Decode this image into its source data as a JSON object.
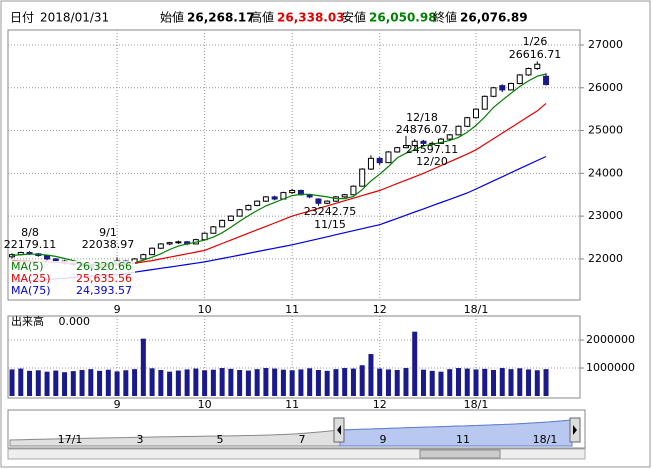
{
  "header": {
    "date_label": "日付",
    "date": "2018/01/31",
    "fields": [
      {
        "label": "始値",
        "value": "26,268.17",
        "color": "#000000"
      },
      {
        "label": "高値",
        "value": "26,338.03",
        "color": "#e00000"
      },
      {
        "label": "安値",
        "value": "26,050.98",
        "color": "#008000"
      },
      {
        "label": "終値",
        "value": "26,076.89",
        "color": "#000000"
      }
    ]
  },
  "chart_data": [
    {
      "type": "candlestick",
      "categories": [
        null,
        null,
        null,
        null,
        null,
        null,
        null,
        null,
        null,
        null,
        null,
        null,
        "9",
        null,
        null,
        null,
        null,
        null,
        null,
        null,
        null,
        null,
        "10",
        null,
        null,
        null,
        null,
        null,
        null,
        null,
        null,
        null,
        "11",
        null,
        null,
        null,
        null,
        null,
        null,
        null,
        null,
        null,
        "12",
        null,
        null,
        null,
        null,
        null,
        null,
        null,
        null,
        null,
        null,
        "18/1",
        null,
        null,
        null,
        null,
        null,
        null,
        null,
        null
      ],
      "ohlc": [
        [
          22050,
          22130,
          22010,
          22100
        ],
        [
          22100,
          22170,
          22080,
          22150
        ],
        [
          22150,
          22179.11,
          22090,
          22120
        ],
        [
          22120,
          22140,
          22050,
          22080
        ],
        [
          22080,
          22090,
          21970,
          22000
        ],
        [
          22000,
          22020,
          21920,
          21950
        ],
        [
          21950,
          21980,
          21870,
          21900
        ],
        [
          21900,
          21930,
          21840,
          21870
        ],
        [
          21870,
          21900,
          21810,
          21850
        ],
        [
          21850,
          21870,
          21760,
          21800
        ],
        [
          21800,
          21850,
          21780,
          21820
        ],
        [
          21820,
          21920,
          21800,
          21900
        ],
        [
          21900,
          22038.97,
          21880,
          21950
        ],
        [
          21950,
          21970,
          21870,
          21900
        ],
        [
          21900,
          22020,
          21890,
          22000
        ],
        [
          22000,
          22120,
          21990,
          22100
        ],
        [
          22100,
          22270,
          22090,
          22250
        ],
        [
          22250,
          22370,
          22230,
          22350
        ],
        [
          22350,
          22400,
          22320,
          22380
        ],
        [
          22380,
          22430,
          22350,
          22400
        ],
        [
          22400,
          22420,
          22320,
          22350
        ],
        [
          22350,
          22470,
          22340,
          22450
        ],
        [
          22450,
          22620,
          22440,
          22600
        ],
        [
          22600,
          22770,
          22590,
          22750
        ],
        [
          22750,
          22920,
          22740,
          22900
        ],
        [
          22900,
          23020,
          22880,
          23000
        ],
        [
          23000,
          23170,
          22990,
          23150
        ],
        [
          23150,
          23270,
          23130,
          23250
        ],
        [
          23250,
          23370,
          23230,
          23350
        ],
        [
          23350,
          23470,
          23330,
          23450
        ],
        [
          23450,
          23480,
          23370,
          23400
        ],
        [
          23400,
          23570,
          23390,
          23550
        ],
        [
          23550,
          23640,
          23520,
          23600
        ],
        [
          23600,
          23620,
          23480,
          23500
        ],
        [
          23500,
          23520,
          23420,
          23450
        ],
        [
          23400,
          23420,
          23242.75,
          23300
        ],
        [
          23300,
          23370,
          23280,
          23350
        ],
        [
          23350,
          23470,
          23330,
          23450
        ],
        [
          23450,
          23520,
          23430,
          23500
        ],
        [
          23500,
          23720,
          23490,
          23700
        ],
        [
          23700,
          24120,
          23690,
          24100
        ],
        [
          24100,
          24420,
          24080,
          24350
        ],
        [
          24350,
          24380,
          24200,
          24250
        ],
        [
          24250,
          24520,
          24240,
          24500
        ],
        [
          24500,
          24620,
          24480,
          24600
        ],
        [
          24600,
          24876.07,
          24590,
          24650
        ],
        [
          24650,
          24800,
          24597.11,
          24750
        ],
        [
          24750,
          24780,
          24660,
          24700
        ],
        [
          24700,
          24740,
          24650,
          24700
        ],
        [
          24700,
          24830,
          24690,
          24800
        ],
        [
          24800,
          24920,
          24780,
          24900
        ],
        [
          24900,
          25120,
          24890,
          25100
        ],
        [
          25100,
          25320,
          25080,
          25300
        ],
        [
          25300,
          25520,
          25280,
          25500
        ],
        [
          25500,
          25820,
          25490,
          25800
        ],
        [
          25800,
          26020,
          25780,
          26000
        ],
        [
          26050,
          26080,
          25900,
          25950
        ],
        [
          25950,
          26120,
          25940,
          26100
        ],
        [
          26100,
          26320,
          26080,
          26300
        ],
        [
          26300,
          26470,
          26280,
          26450
        ],
        [
          26450,
          26616.71,
          26420,
          26550
        ],
        [
          26268.17,
          26338.03,
          26050.98,
          26076.89
        ]
      ],
      "up_color": "#ffffff",
      "down_color": "#1a1a8c",
      "series": [
        {
          "name": "MA(5)",
          "color": "#008000",
          "last_label": "26,320.66",
          "values": [
            22080,
            22100,
            22110,
            22110,
            22090,
            22060,
            22010,
            21960,
            21910,
            21870,
            21850,
            21850,
            21860,
            21870,
            21910,
            21970,
            22040,
            22120,
            22220,
            22300,
            22350,
            22390,
            22440,
            22510,
            22610,
            22740,
            22880,
            23010,
            23130,
            23240,
            23320,
            23400,
            23480,
            23510,
            23510,
            23480,
            23450,
            23410,
            23410,
            23460,
            23620,
            23820,
            23980,
            24160,
            24360,
            24470,
            24550,
            24640,
            24680,
            24720,
            24770,
            24840,
            24960,
            25120,
            25320,
            25540,
            25710,
            25870,
            26030,
            26160,
            26270,
            26320.66
          ]
        },
        {
          "name": "MA(25)",
          "color": "#e00000",
          "last_label": "25,635.56",
          "values": [
            21950,
            21945,
            21940,
            21935,
            21930,
            21920,
            21910,
            21900,
            21890,
            21880,
            21870,
            21865,
            21860,
            21880,
            21900,
            21930,
            21960,
            22000,
            22040,
            22080,
            22120,
            22160,
            22200,
            22280,
            22360,
            22440,
            22520,
            22600,
            22680,
            22760,
            22840,
            22920,
            23000,
            23060,
            23120,
            23180,
            23240,
            23300,
            23360,
            23420,
            23480,
            23540,
            23600,
            23680,
            23760,
            23840,
            23920,
            24000,
            24090,
            24180,
            24270,
            24360,
            24450,
            24550,
            24680,
            24810,
            24940,
            25070,
            25200,
            25330,
            25460,
            25635.56
          ]
        },
        {
          "name": "MA(75)",
          "color": "#0000e0",
          "last_label": "24,393.57",
          "values": [
            21460,
            21475,
            21490,
            21505,
            21520,
            21535,
            21550,
            21565,
            21580,
            21595,
            21610,
            21620,
            21630,
            21660,
            21690,
            21720,
            21750,
            21780,
            21810,
            21840,
            21870,
            21900,
            21930,
            21970,
            22010,
            22050,
            22090,
            22130,
            22170,
            22210,
            22250,
            22290,
            22330,
            22377,
            22424,
            22471,
            22518,
            22565,
            22612,
            22659,
            22706,
            22753,
            22800,
            22874,
            22948,
            23022,
            23096,
            23170,
            23244,
            23318,
            23392,
            23466,
            23540,
            23635,
            23730,
            23825,
            23920,
            24015,
            24110,
            24205,
            24300,
            24393.57
          ]
        }
      ],
      "annotations": [
        {
          "date": "8/8",
          "price": "22179.11"
        },
        {
          "date": "9/1",
          "price": "22038.97"
        },
        {
          "date": "11/15",
          "price": "23242.75"
        },
        {
          "date": "12/18",
          "price": "24876.07"
        },
        {
          "date": "12/20",
          "price": "24597.11"
        },
        {
          "date": "1/26",
          "price": "26616.71"
        }
      ],
      "ylim": [
        21040,
        27350
      ],
      "yticks": [
        22000,
        23000,
        24000,
        25000,
        26000,
        27000
      ],
      "grid": true
    },
    {
      "type": "bar",
      "title": "出来高",
      "subtitle": "0.000",
      "color": "#1a1a8c",
      "categories": [
        null,
        null,
        null,
        null,
        null,
        null,
        null,
        null,
        null,
        null,
        null,
        null,
        "9",
        null,
        null,
        null,
        null,
        null,
        null,
        null,
        null,
        null,
        "10",
        null,
        null,
        null,
        null,
        null,
        null,
        null,
        null,
        null,
        "11",
        null,
        null,
        null,
        null,
        null,
        null,
        null,
        null,
        null,
        "12",
        null,
        null,
        null,
        null,
        null,
        null,
        null,
        null,
        null,
        null,
        "18/1",
        null,
        null,
        null,
        null,
        null,
        null,
        null,
        null
      ],
      "values": [
        950000,
        980000,
        900000,
        920000,
        870000,
        910000,
        850000,
        890000,
        930000,
        960000,
        900000,
        940000,
        880000,
        920000,
        960000,
        2050000,
        990000,
        930000,
        870000,
        910000,
        950000,
        980000,
        920000,
        940000,
        1000000,
        970000,
        930000,
        910000,
        960000,
        1000000,
        980000,
        940000,
        920000,
        950000,
        990000,
        930000,
        900000,
        960000,
        1000000,
        980000,
        1100000,
        1500000,
        980000,
        950000,
        930000,
        1000000,
        2300000,
        940000,
        900000,
        870000,
        960000,
        1000000,
        980000,
        950000,
        970000,
        930000,
        1000000,
        960000,
        990000,
        950000,
        920000,
        960000
      ],
      "ylim": [
        0,
        2860000
      ],
      "yticks": [
        1000000,
        2000000
      ],
      "grid": true
    }
  ],
  "navigator": {
    "labels": [
      "17/1",
      "3",
      "5",
      "7",
      "9",
      "11",
      "18/1"
    ]
  }
}
